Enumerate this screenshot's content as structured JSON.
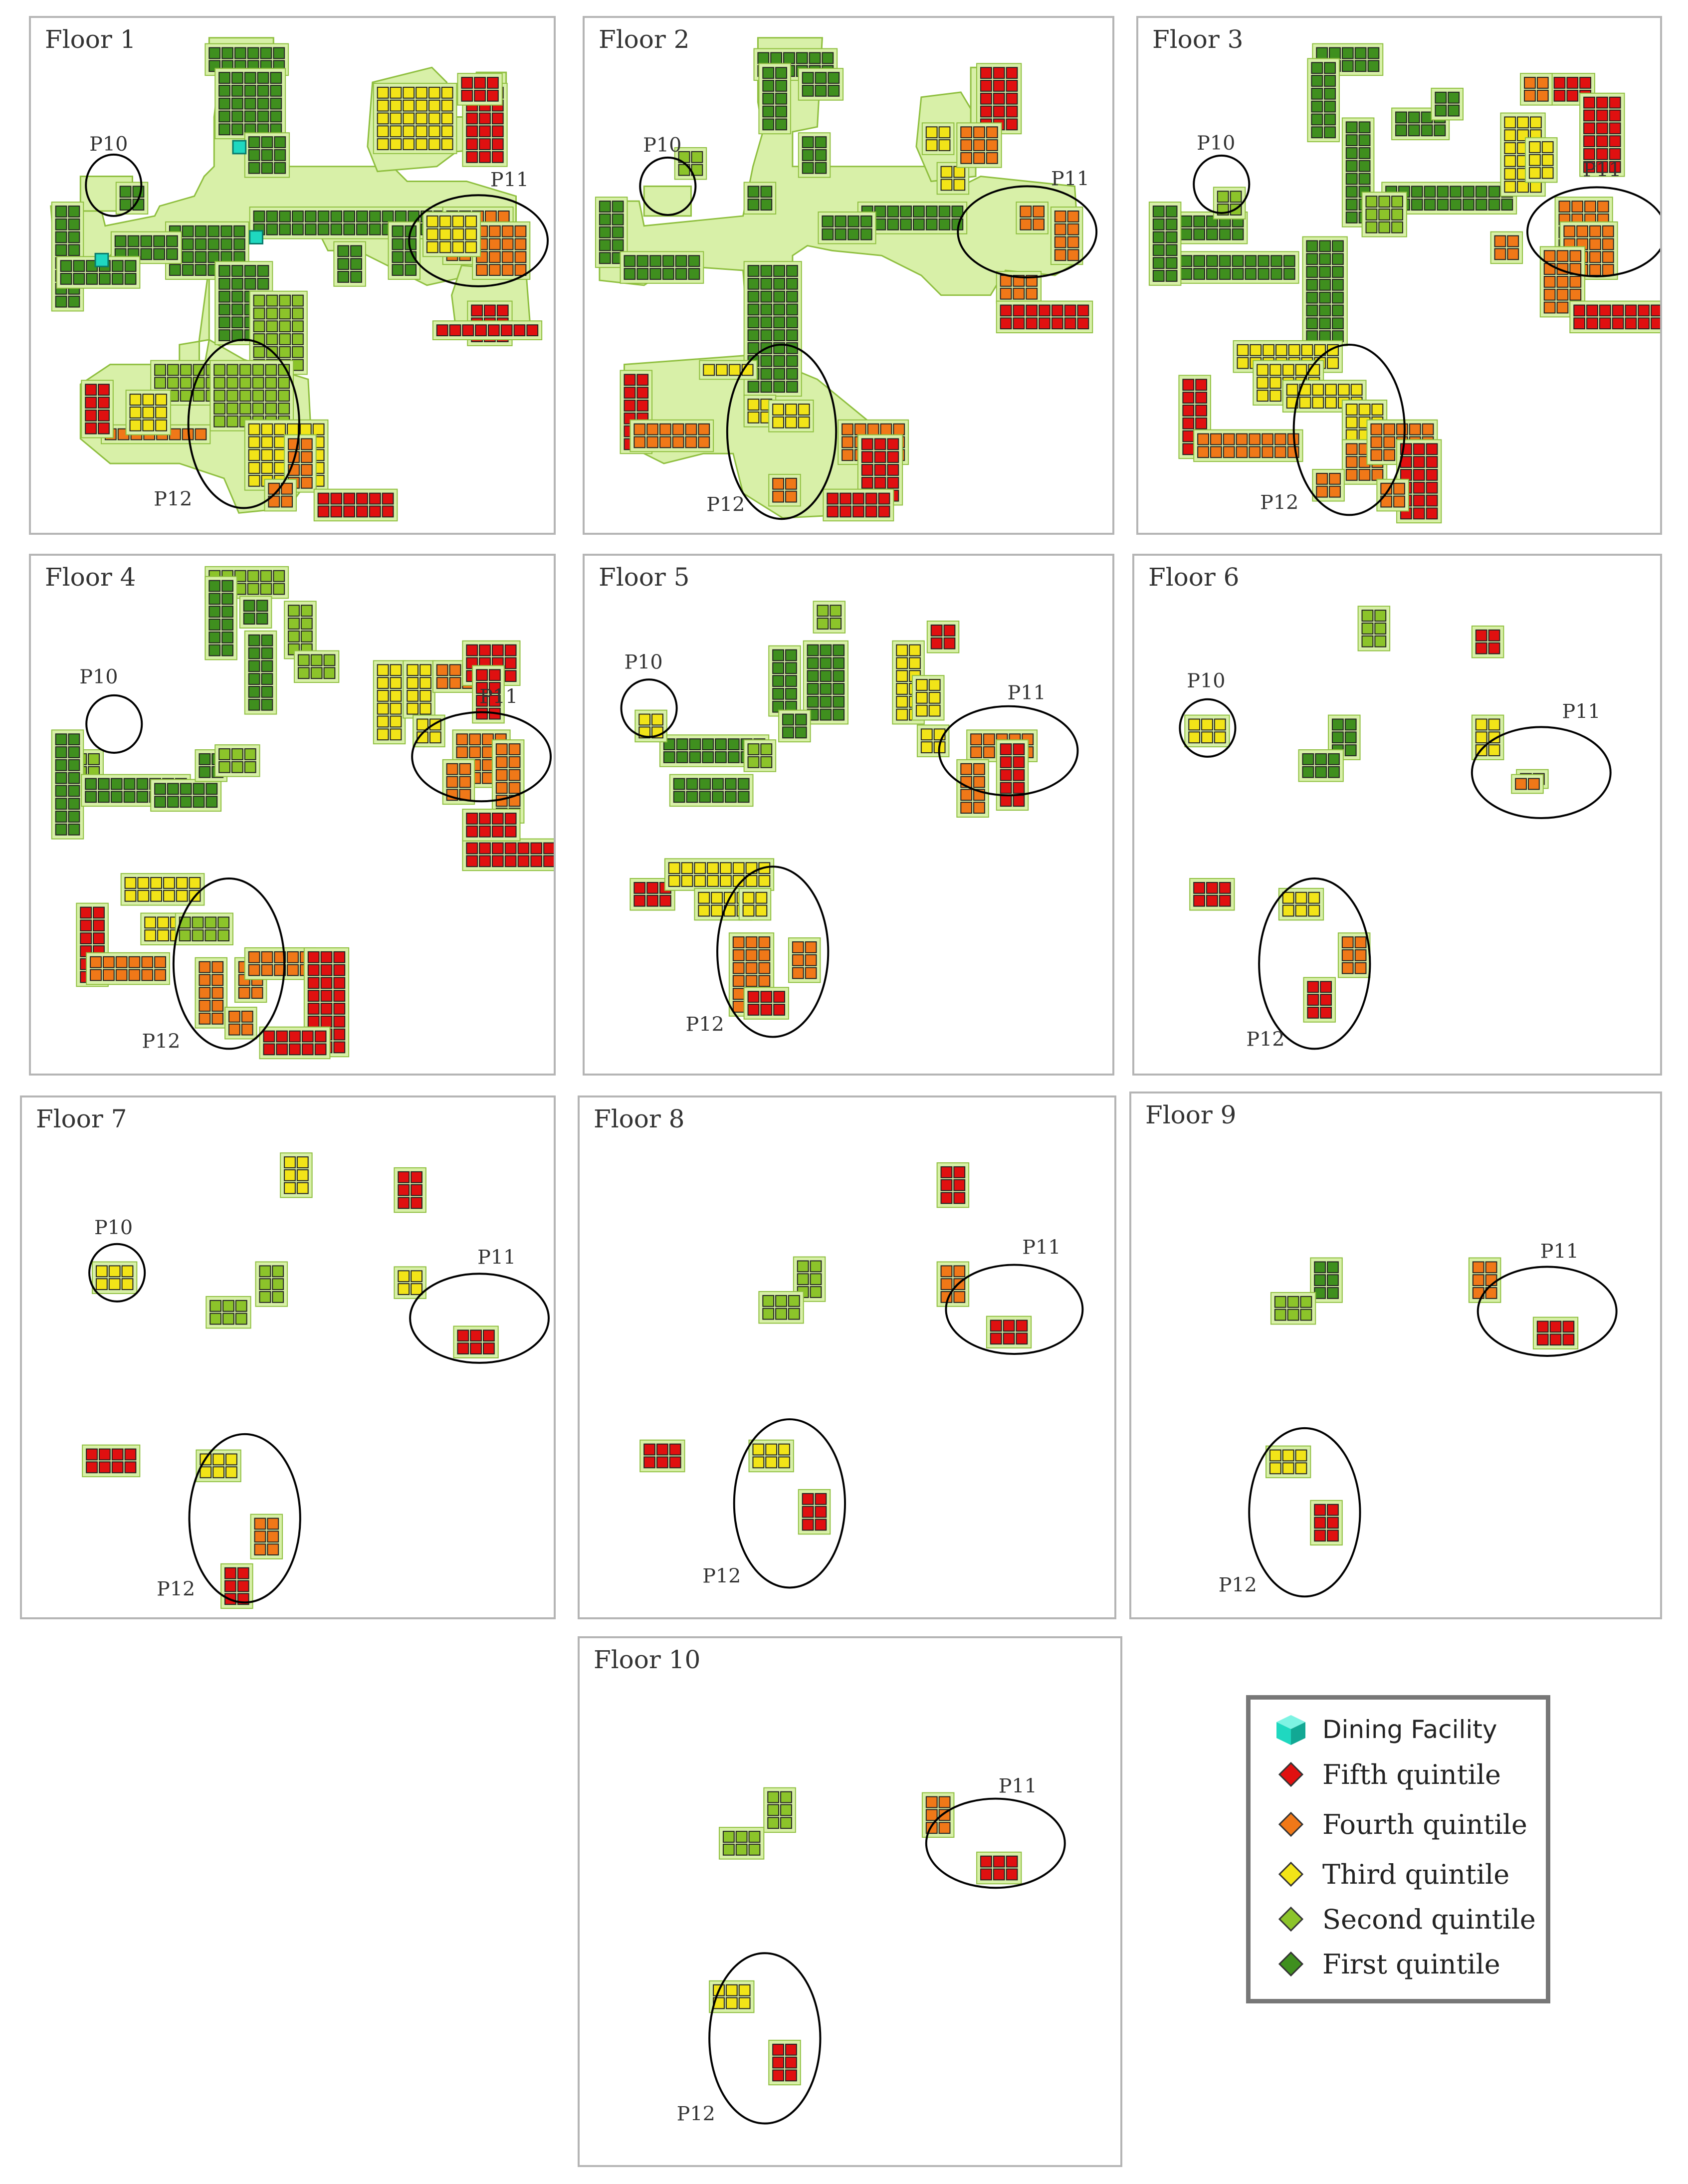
{
  "colors": {
    "building_fill": "#d8f0a8",
    "building_stroke": "#8fbf3f",
    "dining": "#1fd8c0",
    "fifth": "#e01010",
    "fourth": "#f07818",
    "third": "#f2e418",
    "second": "#8cc42a",
    "first": "#3f8f1e",
    "circle": "#000000"
  },
  "panels": [
    {
      "title": "Floor 1",
      "labels": [
        "P10",
        "P11",
        "P12"
      ]
    },
    {
      "title": "Floor 2",
      "labels": [
        "P10",
        "P11",
        "P12"
      ]
    },
    {
      "title": "Floor 3",
      "labels": [
        "P10",
        "P11",
        "P12"
      ]
    },
    {
      "title": "Floor 4",
      "labels": [
        "P10",
        "P11",
        "P12"
      ]
    },
    {
      "title": "Floor 5",
      "labels": [
        "P10",
        "P11",
        "P12"
      ]
    },
    {
      "title": "Floor 6",
      "labels": [
        "P10",
        "P11",
        "P12"
      ]
    },
    {
      "title": "Floor 7",
      "labels": [
        "P10",
        "P11",
        "P12"
      ]
    },
    {
      "title": "Floor 8",
      "labels": [
        "P11",
        "P12"
      ]
    },
    {
      "title": "Floor 9",
      "labels": [
        "P11",
        "P12"
      ]
    },
    {
      "title": "Floor 10",
      "labels": [
        "P11",
        "P12"
      ]
    }
  ],
  "legend": {
    "items": [
      {
        "label": "Dining Facility",
        "icon": "cube-icon",
        "color": "#1fd8c0"
      },
      {
        "label": "Fifth quintile",
        "icon": "diamond-icon",
        "color": "#e01010"
      },
      {
        "label": "Fourth quintile",
        "icon": "diamond-icon",
        "color": "#f07818"
      },
      {
        "label": "Third quintile",
        "icon": "diamond-icon",
        "color": "#f2e418"
      },
      {
        "label": "Second quintile",
        "icon": "diamond-icon",
        "color": "#8cc42a"
      },
      {
        "label": "First quintile",
        "icon": "diamond-icon",
        "color": "#3f8f1e"
      }
    ]
  }
}
